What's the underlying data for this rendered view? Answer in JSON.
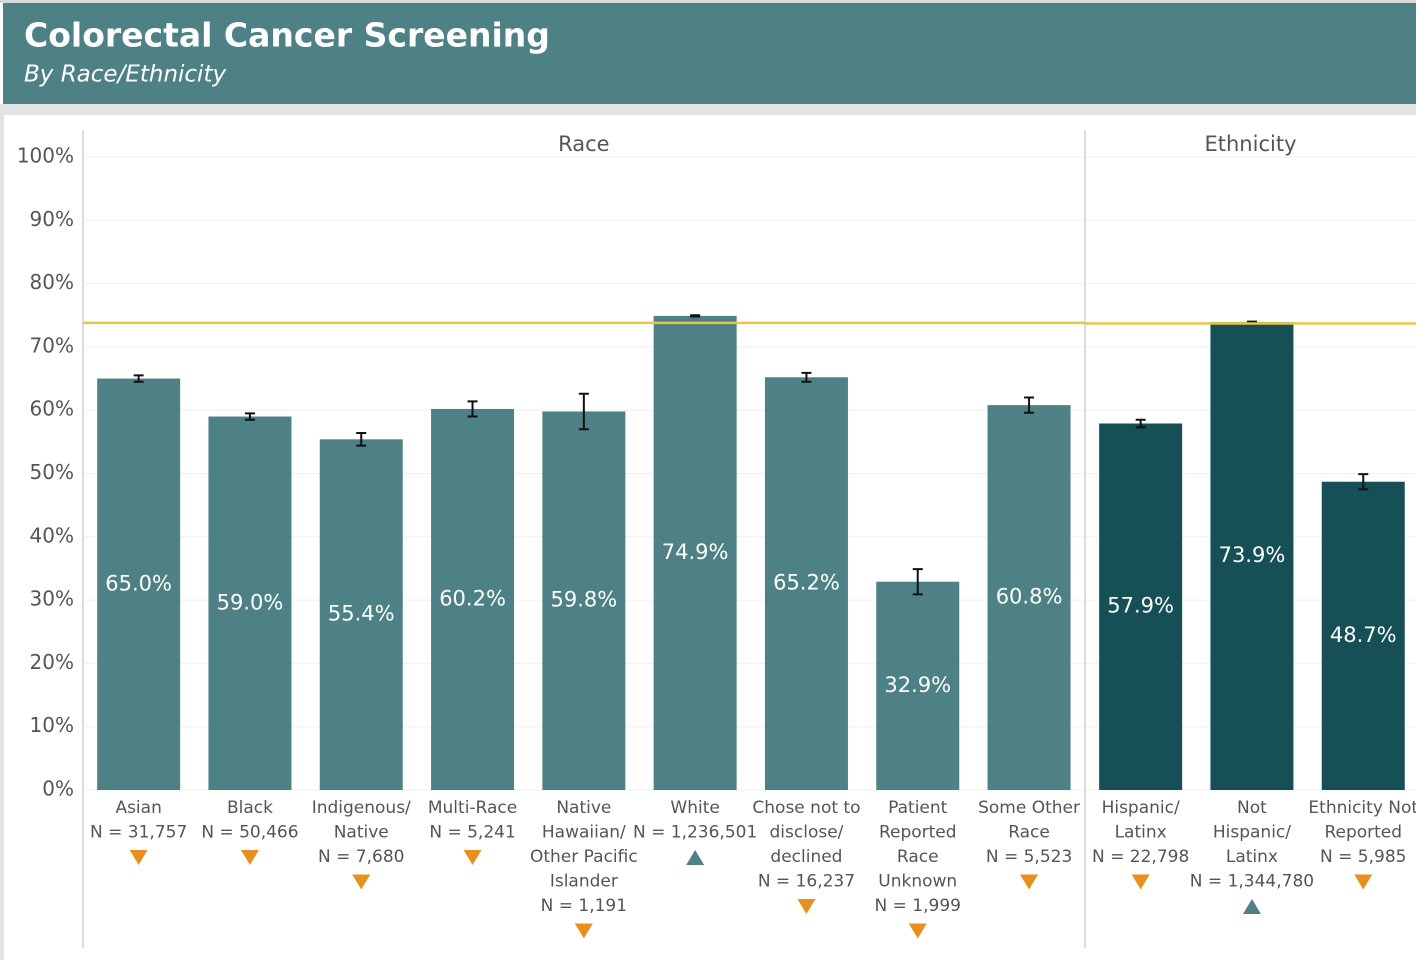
{
  "title": "Colorectal Cancer Screening",
  "subtitle": "By Race/Ethnicity",
  "chart_data": [
    {
      "type": "bar",
      "title": "Race",
      "color": "#4e8186",
      "categories": [
        [
          "Asian"
        ],
        [
          "Black"
        ],
        [
          "Indigenous/",
          "Native"
        ],
        [
          "Multi-Race"
        ],
        [
          "Native",
          "Hawaiian/",
          "Other Pacific",
          "Islander"
        ],
        [
          "White"
        ],
        [
          "Chose not to",
          "disclose/",
          "declined"
        ],
        [
          "Patient",
          "Reported",
          "Race",
          "Unknown"
        ],
        [
          "Some Other",
          "Race"
        ]
      ],
      "n_labels": [
        "N = 31,757",
        "N = 50,466",
        "N = 7,680",
        "N = 5,241",
        "N = 1,191",
        "N = 1,236,501",
        "N = 16,237",
        "N = 1,999",
        "N = 5,523"
      ],
      "values": [
        65.0,
        59.0,
        55.4,
        60.2,
        59.8,
        74.9,
        65.2,
        32.9,
        60.8
      ],
      "value_labels": [
        "65.0%",
        "59.0%",
        "55.4%",
        "60.2%",
        "59.8%",
        "74.9%",
        "65.2%",
        "32.9%",
        "60.8%"
      ],
      "errors": [
        0.5,
        0.5,
        1.0,
        1.2,
        2.8,
        0.1,
        0.7,
        2.0,
        1.2
      ],
      "indicators": [
        "down",
        "down",
        "down",
        "down",
        "down",
        "up",
        "down",
        "down",
        "down"
      ],
      "indicator_colors": {
        "down": "#e8901e",
        "up": "#4e8186"
      },
      "reference_line": 73.8,
      "reference_color": "#e8c547",
      "ylim": [
        0,
        100
      ],
      "yticks": [
        {
          "value": 0,
          "label": "0%"
        },
        {
          "value": 10,
          "label": "10%"
        },
        {
          "value": 20,
          "label": "20%"
        },
        {
          "value": 30,
          "label": "30%"
        },
        {
          "value": 40,
          "label": "40%"
        },
        {
          "value": 50,
          "label": "50%"
        },
        {
          "value": 60,
          "label": "60%"
        },
        {
          "value": 70,
          "label": "70%"
        },
        {
          "value": 80,
          "label": "80%"
        },
        {
          "value": 90,
          "label": "90%"
        },
        {
          "value": 100,
          "label": "100%"
        }
      ],
      "grid": true
    },
    {
      "type": "bar",
      "title": "Ethnicity",
      "color": "#174f57",
      "categories": [
        [
          "Hispanic/",
          "Latinx"
        ],
        [
          "Not",
          "Hispanic/",
          "Latinx"
        ],
        [
          "Ethnicity Not",
          "Reported"
        ]
      ],
      "n_labels": [
        "N = 22,798",
        "N = 1,344,780",
        "N = 5,985"
      ],
      "values": [
        57.9,
        73.9,
        48.7
      ],
      "value_labels": [
        "57.9%",
        "73.9%",
        "48.7%"
      ],
      "errors": [
        0.6,
        0.1,
        1.2
      ],
      "indicators": [
        "down",
        "up",
        "down"
      ],
      "indicator_colors": {
        "down": "#e8901e",
        "up": "#4e8186"
      },
      "reference_line": 73.7,
      "reference_color": "#e8c547",
      "ylim": [
        0,
        100
      ],
      "grid": true
    }
  ]
}
